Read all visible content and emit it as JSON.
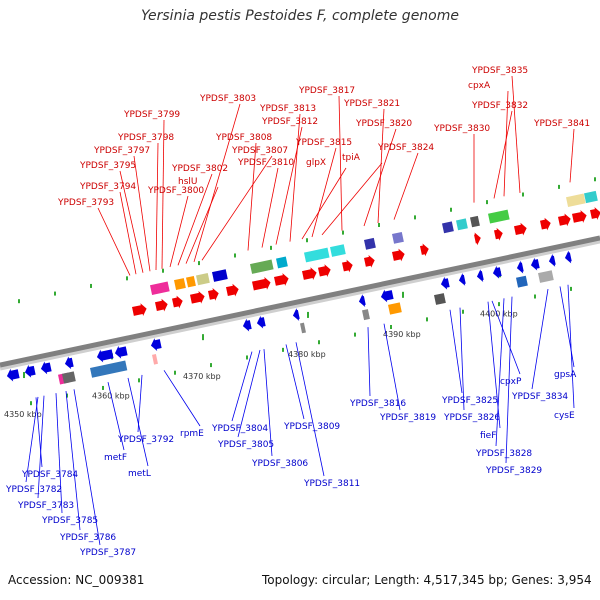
{
  "title": "Yersinia pestis Pestoides F, complete genome",
  "footer": {
    "accession": "Accession: NC_009381",
    "topology": "Topology: circular; Length: 4,517,345 bp; Genes: 3,954"
  },
  "colors": {
    "forward_arrow": "#ee0000",
    "reverse_arrow": "#0000dd",
    "forward_label": "#cc0000",
    "reverse_label": "#0000cc",
    "backbone": "#808080",
    "tick": "#33aa33"
  },
  "tick_labels": [
    "4350 kbp",
    "4360 kbp",
    "4370 kbp",
    "4380 kbp",
    "4390 kbp",
    "4400 kbp"
  ],
  "forward_labels": [
    "YPDSF_3793",
    "YPDSF_3794",
    "YPDSF_3795",
    "YPDSF_3797",
    "YPDSF_3798",
    "YPDSF_3799",
    "YPDSF_3800",
    "YPDSF_3802",
    "hslU",
    "YPDSF_3803",
    "YPDSF_3807",
    "YPDSF_3808",
    "YPDSF_3810",
    "YPDSF_3812",
    "YPDSF_3813",
    "glpX",
    "YPDSF_3815",
    "tpiA",
    "YPDSF_3817",
    "YPDSF_3820",
    "YPDSF_3821",
    "YPDSF_3824",
    "YPDSF_3830",
    "YPDSF_3832",
    "cpxA",
    "YPDSF_3835",
    "YPDSF_3841"
  ],
  "reverse_labels": [
    "YPDSF_3782",
    "YPDSF_3783",
    "YPDSF_3784",
    "YPDSF_3785",
    "YPDSF_3786",
    "YPDSF_3787",
    "metF",
    "metL",
    "YPDSF_3792",
    "rpmE",
    "YPDSF_3804",
    "YPDSF_3805",
    "YPDSF_3806",
    "YPDSF_3809",
    "YPDSF_3811",
    "YPDSF_3816",
    "YPDSF_3819",
    "YPDSF_3825",
    "YPDSF_3826",
    "fieF",
    "cpxP",
    "YPDSF_3828",
    "YPDSF_3829",
    "YPDSF_3834",
    "gpsA",
    "cysE"
  ]
}
